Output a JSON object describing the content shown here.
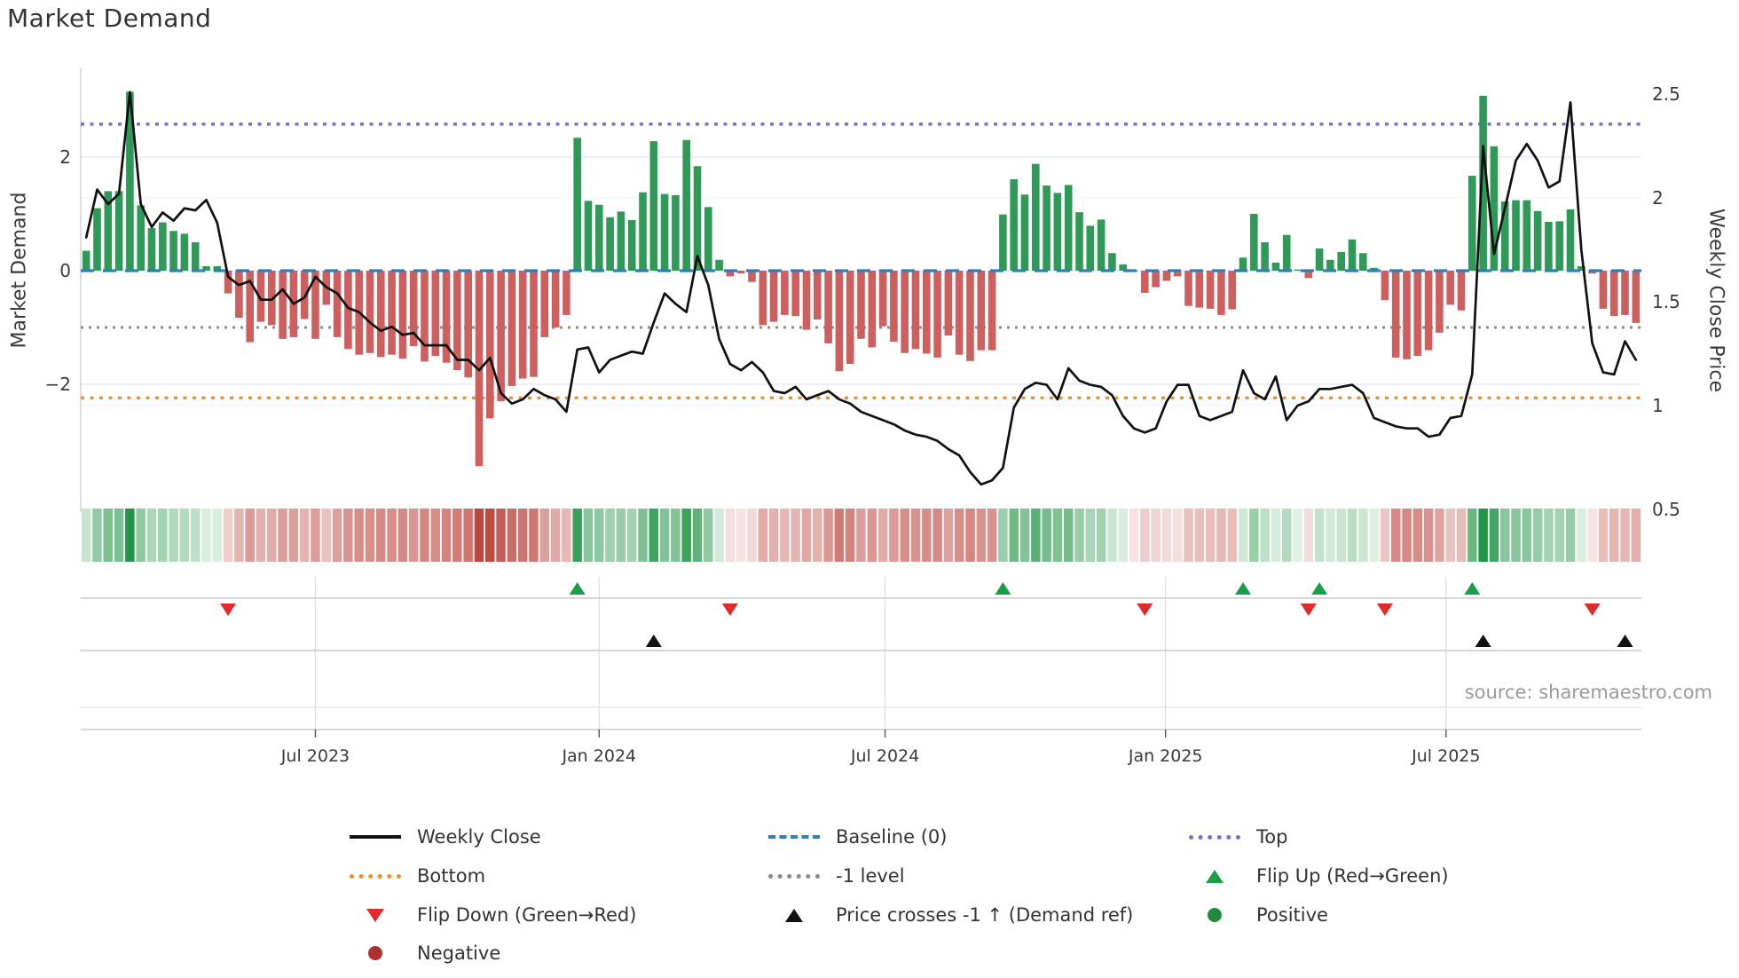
{
  "title": "Market Demand",
  "source": "source: sharemaestro.com",
  "axes": {
    "left_label": "Market Demand",
    "right_label": "Weekly Close Price",
    "left_tick_labels": [
      "2",
      "0",
      "−2"
    ],
    "right_tick_labels": [
      "2.5",
      "2",
      "1.5",
      "1",
      "0.5"
    ],
    "x_tick_labels": [
      "Jul 2023",
      "Jan 2024",
      "Jul 2024",
      "Jan 2025",
      "Jul 2025"
    ]
  },
  "colors": {
    "bar_positive": "#2f9a58",
    "bar_negative": "#cd5f5f",
    "price_line": "#111111",
    "baseline": "#2e7ebb",
    "top_line": "#7b6fce",
    "bottom_line": "#f29122",
    "minus1_line": "#8a8a8a",
    "flip_up": "#18a049",
    "flip_down": "#e02b2b",
    "price_cross": "#111111",
    "negative_dot": "#b03030",
    "positive_dot": "#1f8b3b",
    "heat_green": [
      34,
      150,
      70
    ],
    "heat_red": [
      190,
      70,
      62
    ],
    "grid": "#e9eaf4",
    "grid_minor": "#eff1f7",
    "panel_line": "#c9c9c9",
    "tick_text": "#3a3a3a"
  },
  "legend": {
    "columns": [
      [
        {
          "label": "Weekly Close",
          "swatch": "line-solid",
          "color": "#111111"
        },
        {
          "label": "Bottom",
          "swatch": "line-dotted",
          "color": "#f29122"
        },
        {
          "label": "Flip Down (Green→Red)",
          "swatch": "triangle-down",
          "color": "#e02b2b"
        },
        {
          "label": "Negative",
          "swatch": "circle",
          "color": "#b03030"
        }
      ],
      [
        {
          "label": "Baseline (0)",
          "swatch": "line-dashed",
          "color": "#2e7ebb"
        },
        {
          "label": "-1 level",
          "swatch": "line-dotted",
          "color": "#8a8a8a"
        },
        {
          "label": "Price crosses -1 ↑ (Demand ref)",
          "swatch": "triangle-up",
          "color": "#111111"
        }
      ],
      [
        {
          "label": "Top",
          "swatch": "line-dotted",
          "color": "#7b6fce"
        },
        {
          "label": "Flip Up (Red→Green)",
          "swatch": "triangle-up",
          "color": "#18a049"
        },
        {
          "label": "Positive",
          "swatch": "circle",
          "color": "#1f8b3b"
        }
      ]
    ]
  },
  "chart_data": {
    "type": "combo-bar-line-with-heatmap",
    "title": "Market Demand",
    "x_axis": {
      "unit": "week",
      "n_points": 143,
      "tick_labels": [
        "Jul 2023",
        "Jan 2024",
        "Jul 2024",
        "Jan 2025",
        "Jul 2025"
      ],
      "tick_week_positions": [
        21.0,
        47.0,
        73.2,
        98.9,
        124.6
      ]
    },
    "left_axis": {
      "label": "Market Demand",
      "ticks": [
        2,
        0,
        -2
      ],
      "ylim": [
        -4.25,
        3.56
      ]
    },
    "right_axis": {
      "label": "Weekly Close Price",
      "ticks": [
        2.5,
        2,
        1.5,
        1,
        0.5
      ],
      "ylim": [
        0.49,
        2.62
      ]
    },
    "reference_lines": {
      "top": 2.58,
      "baseline": 0,
      "minus1": -1,
      "bottom": -2.24
    },
    "series": [
      {
        "name": "Market Demand",
        "type": "bar",
        "axis": "left",
        "values": [
          0.35,
          1.1,
          1.4,
          1.4,
          3.15,
          1.15,
          0.75,
          0.85,
          0.7,
          0.65,
          0.5,
          0.08,
          0.08,
          -0.4,
          -0.83,
          -1.26,
          -0.9,
          -0.96,
          -1.2,
          -1.17,
          -0.85,
          -1.2,
          -0.6,
          -1.17,
          -1.38,
          -1.48,
          -1.45,
          -1.52,
          -1.48,
          -1.55,
          -1.33,
          -1.6,
          -1.5,
          -1.62,
          -1.75,
          -1.88,
          -3.44,
          -2.6,
          -2.3,
          -2.03,
          -1.9,
          -1.87,
          -1.17,
          -1.0,
          -0.78,
          2.34,
          1.23,
          1.16,
          0.94,
          1.04,
          0.89,
          1.38,
          2.28,
          1.35,
          1.33,
          2.3,
          1.84,
          1.12,
          0.19,
          -0.1,
          -0.05,
          -0.2,
          -0.96,
          -0.9,
          -0.78,
          -0.8,
          -1.04,
          -0.86,
          -1.28,
          -1.77,
          -1.64,
          -1.2,
          -1.35,
          -0.98,
          -1.25,
          -1.45,
          -1.38,
          -1.46,
          -1.53,
          -1.14,
          -1.48,
          -1.59,
          -1.4,
          -1.4,
          0.99,
          1.61,
          1.34,
          1.88,
          1.5,
          1.37,
          1.51,
          1.03,
          0.79,
          0.9,
          0.31,
          0.11,
          -0.02,
          -0.39,
          -0.29,
          -0.18,
          -0.1,
          -0.62,
          -0.65,
          -0.67,
          -0.78,
          -0.68,
          0.23,
          1.0,
          0.5,
          0.14,
          0.63,
          0.02,
          -0.13,
          0.39,
          0.19,
          0.33,
          0.55,
          0.31,
          0.05,
          -0.52,
          -1.53,
          -1.56,
          -1.5,
          -1.4,
          -1.09,
          -0.6,
          -0.7,
          1.67,
          3.08,
          2.19,
          1.22,
          1.24,
          1.24,
          1.05,
          0.86,
          0.87,
          1.08,
          0.08,
          -0.05,
          -0.67,
          -0.8,
          -0.78,
          -0.92
        ]
      },
      {
        "name": "Weekly Close",
        "type": "line",
        "axis": "right",
        "values": [
          1.81,
          2.04,
          1.97,
          2.02,
          2.51,
          1.97,
          1.86,
          1.93,
          1.89,
          1.95,
          1.94,
          1.99,
          1.88,
          1.62,
          1.58,
          1.6,
          1.51,
          1.51,
          1.56,
          1.49,
          1.52,
          1.62,
          1.57,
          1.54,
          1.47,
          1.45,
          1.4,
          1.36,
          1.38,
          1.34,
          1.35,
          1.29,
          1.29,
          1.29,
          1.22,
          1.22,
          1.17,
          1.23,
          1.06,
          1.01,
          1.03,
          1.08,
          1.05,
          1.03,
          0.97,
          1.27,
          1.28,
          1.16,
          1.22,
          1.24,
          1.26,
          1.25,
          1.4,
          1.54,
          1.49,
          1.45,
          1.72,
          1.58,
          1.32,
          1.2,
          1.17,
          1.21,
          1.16,
          1.07,
          1.06,
          1.09,
          1.03,
          1.05,
          1.07,
          1.03,
          1.01,
          0.97,
          0.95,
          0.93,
          0.91,
          0.88,
          0.86,
          0.85,
          0.83,
          0.79,
          0.76,
          0.68,
          0.62,
          0.64,
          0.7,
          0.99,
          1.08,
          1.11,
          1.1,
          1.03,
          1.18,
          1.12,
          1.1,
          1.09,
          1.05,
          0.95,
          0.89,
          0.87,
          0.89,
          1.02,
          1.1,
          1.1,
          0.95,
          0.93,
          0.95,
          0.97,
          1.17,
          1.06,
          1.03,
          1.14,
          0.93,
          1.0,
          1.02,
          1.08,
          1.08,
          1.09,
          1.1,
          1.06,
          0.94,
          0.92,
          0.9,
          0.89,
          0.89,
          0.85,
          0.86,
          0.94,
          0.95,
          1.15,
          2.25,
          1.73,
          1.95,
          2.18,
          2.26,
          2.18,
          2.05,
          2.08,
          2.46,
          1.75,
          1.3,
          1.16,
          1.15,
          1.31,
          1.22
        ]
      }
    ],
    "heatmap": {
      "note": "strip below chart; color = sign of demand bar (green/red), intensity = |value|",
      "source_series": "Market Demand"
    },
    "markers": {
      "flip_up_weeks": [
        45,
        84,
        106,
        113,
        127
      ],
      "flip_down_weeks": [
        13,
        59,
        97,
        112,
        119,
        138
      ],
      "price_cross_weeks": [
        52,
        128,
        141
      ]
    },
    "legend_entries": [
      "Weekly Close",
      "Baseline (0)",
      "Top",
      "Bottom",
      "-1 level",
      "Flip Up (Red→Green)",
      "Flip Down (Green→Red)",
      "Price crosses -1 ↑ (Demand ref)",
      "Positive",
      "Negative"
    ],
    "grid": "horizontal light gridlines at axis ticks; vertical gridlines in marker panel at date ticks"
  }
}
